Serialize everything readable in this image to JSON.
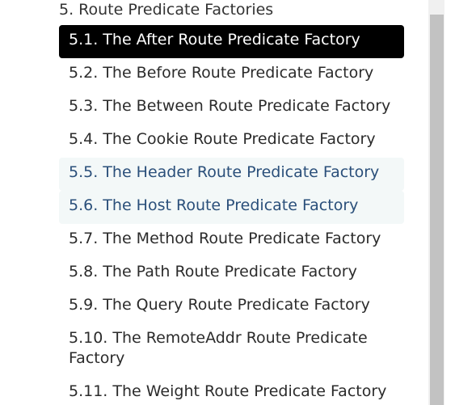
{
  "section_title": "5. Route Predicate Factories",
  "items": [
    {
      "label": "5.1. The After Route Predicate Factory"
    },
    {
      "label": "5.2. The Before Route Predicate Factory"
    },
    {
      "label": "5.3. The Between Route Predicate Factory"
    },
    {
      "label": "5.4. The Cookie Route Predicate Factory"
    },
    {
      "label": "5.5. The Header Route Predicate Factory"
    },
    {
      "label": "5.6. The Host Route Predicate Factory"
    },
    {
      "label": "5.7. The Method Route Predicate Factory"
    },
    {
      "label": "5.8. The Path Route Predicate Factory"
    },
    {
      "label": "5.9. The Query Route Predicate Factory"
    },
    {
      "label": "5.10. The RemoteAddr Route Predicate Factory"
    },
    {
      "label": "5.11. The Weight Route Predicate Factory"
    }
  ],
  "colors": {
    "active_bg": "#000000",
    "active_text": "#ffffff",
    "tinted_bg": "#f3f8f8",
    "tinted_text": "#2a4f7a",
    "text": "#2b2b2b"
  }
}
